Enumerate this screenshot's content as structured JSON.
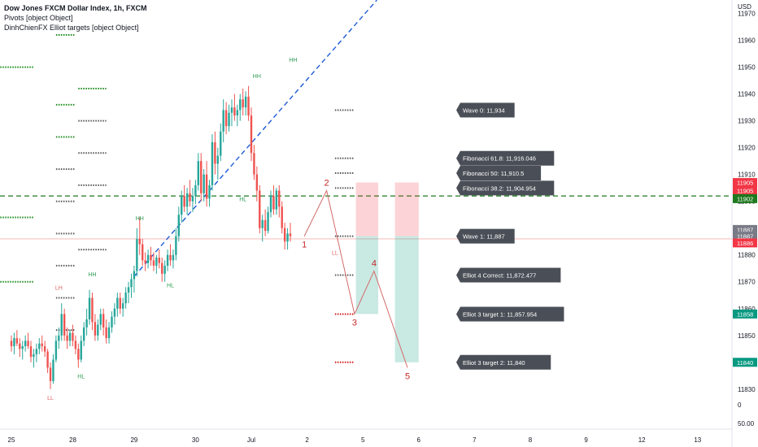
{
  "legend": {
    "title": "Dow Jones FXCM Dollar Index, 1h, FXCM",
    "line2": "Pivots [object Object]",
    "line3": "DinhChienFX Elliot targets [object Object]"
  },
  "colors": {
    "up": "#26a69a",
    "down": "#ef5350",
    "pivotGreen": "#1b8a1b",
    "pivotGray": "#555555",
    "pivotRed": "#d01818",
    "trend": "#1e5bd6",
    "tagBg": "#4a4f57",
    "wave": "#c62828",
    "greenLine": "#1e7a1e"
  },
  "chart_data": {
    "type": "candlestick",
    "symbol": "Dow Jones FXCM Dollar Index",
    "interval": "1h",
    "source": "FXCM",
    "ylim": [
      11826,
      11972
    ],
    "price_axis_currency": "USD",
    "price_ticks": [
      11830,
      11840,
      11850,
      11860,
      11870,
      11880,
      11890,
      11900,
      11910,
      11920,
      11930,
      11940,
      11950,
      11960,
      11970
    ],
    "volume_ticks": [
      "0",
      "50.00"
    ],
    "time_ticks": [
      {
        "label": "25",
        "bar": 0
      },
      {
        "label": "28",
        "bar": 22
      },
      {
        "label": "29",
        "bar": 44
      },
      {
        "label": "30",
        "bar": 66
      },
      {
        "label": "Jul",
        "bar": 86
      },
      {
        "label": "2",
        "bar": 106
      },
      {
        "label": "5",
        "bar": 126
      },
      {
        "label": "6",
        "bar": 146
      },
      {
        "label": "7",
        "bar": 166
      },
      {
        "label": "8",
        "bar": 186
      },
      {
        "label": "9",
        "bar": 206
      },
      {
        "label": "12",
        "bar": 226
      },
      {
        "label": "13",
        "bar": 246
      }
    ],
    "candles": [
      [
        11848,
        11850,
        11844,
        11846
      ],
      [
        11846,
        11851,
        11843,
        11849
      ],
      [
        11849,
        11852,
        11846,
        11847
      ],
      [
        11847,
        11849,
        11842,
        11845
      ],
      [
        11845,
        11848,
        11841,
        11846
      ],
      [
        11846,
        11850,
        11844,
        11848
      ],
      [
        11848,
        11851,
        11845,
        11846
      ],
      [
        11846,
        11848,
        11840,
        11842
      ],
      [
        11842,
        11845,
        11838,
        11843
      ],
      [
        11843,
        11847,
        11840,
        11845
      ],
      [
        11845,
        11849,
        11843,
        11847
      ],
      [
        11847,
        11850,
        11844,
        11846
      ],
      [
        11846,
        11848,
        11842,
        11844
      ],
      [
        11844,
        11845,
        11836,
        11838
      ],
      [
        11838,
        11840,
        11830,
        11833
      ],
      [
        11833,
        11843,
        11832,
        11841
      ],
      [
        11841,
        11850,
        11840,
        11848
      ],
      [
        11848,
        11853,
        11845,
        11850
      ],
      [
        11850,
        11862,
        11848,
        11858
      ],
      [
        11858,
        11860,
        11848,
        11850
      ],
      [
        11850,
        11853,
        11845,
        11848
      ],
      [
        11848,
        11852,
        11846,
        11851
      ],
      [
        11851,
        11854,
        11846,
        11848
      ],
      [
        11848,
        11850,
        11843,
        11845
      ],
      [
        11845,
        11847,
        11838,
        11841
      ],
      [
        11841,
        11850,
        11840,
        11848
      ],
      [
        11848,
        11855,
        11846,
        11853
      ],
      [
        11853,
        11860,
        11850,
        11856
      ],
      [
        11856,
        11867,
        11854,
        11864
      ],
      [
        11864,
        11866,
        11852,
        11855
      ],
      [
        11855,
        11858,
        11848,
        11850
      ],
      [
        11850,
        11856,
        11848,
        11854
      ],
      [
        11854,
        11860,
        11852,
        11858
      ],
      [
        11858,
        11860,
        11850,
        11853
      ],
      [
        11853,
        11856,
        11847,
        11849
      ],
      [
        11849,
        11855,
        11847,
        11853
      ],
      [
        11853,
        11859,
        11851,
        11857
      ],
      [
        11857,
        11862,
        11854,
        11860
      ],
      [
        11860,
        11866,
        11857,
        11864
      ],
      [
        11864,
        11866,
        11858,
        11860
      ],
      [
        11860,
        11864,
        11857,
        11862
      ],
      [
        11862,
        11868,
        11860,
        11866
      ],
      [
        11866,
        11870,
        11862,
        11868
      ],
      [
        11868,
        11873,
        11864,
        11871
      ],
      [
        11871,
        11876,
        11866,
        11874
      ],
      [
        11874,
        11890,
        11872,
        11886
      ],
      [
        11886,
        11894,
        11880,
        11884
      ],
      [
        11884,
        11886,
        11876,
        11878
      ],
      [
        11878,
        11881,
        11874,
        11877
      ],
      [
        11877,
        11882,
        11875,
        11880
      ],
      [
        11880,
        11883,
        11876,
        11878
      ],
      [
        11878,
        11881,
        11874,
        11876
      ],
      [
        11876,
        11880,
        11873,
        11879
      ],
      [
        11879,
        11882,
        11875,
        11877
      ],
      [
        11877,
        11879,
        11870,
        11873
      ],
      [
        11873,
        11878,
        11870,
        11876
      ],
      [
        11876,
        11882,
        11874,
        11880
      ],
      [
        11880,
        11884,
        11876,
        11878
      ],
      [
        11878,
        11882,
        11875,
        11880
      ],
      [
        11880,
        11890,
        11878,
        11887
      ],
      [
        11887,
        11898,
        11885,
        11895
      ],
      [
        11895,
        11904,
        11892,
        11902
      ],
      [
        11902,
        11906,
        11896,
        11898
      ],
      [
        11898,
        11905,
        11895,
        11903
      ],
      [
        11903,
        11908,
        11898,
        11900
      ],
      [
        11900,
        11905,
        11896,
        11902
      ],
      [
        11902,
        11908,
        11899,
        11906
      ],
      [
        11906,
        11918,
        11904,
        11915
      ],
      [
        11915,
        11918,
        11900,
        11903
      ],
      [
        11903,
        11912,
        11900,
        11910
      ],
      [
        11910,
        11915,
        11898,
        11901
      ],
      [
        11901,
        11908,
        11898,
        11906
      ],
      [
        11906,
        11925,
        11904,
        11922
      ],
      [
        11922,
        11926,
        11910,
        11914
      ],
      [
        11914,
        11920,
        11908,
        11917
      ],
      [
        11917,
        11929,
        11915,
        11926
      ],
      [
        11926,
        11938,
        11922,
        11934
      ],
      [
        11934,
        11937,
        11925,
        11928
      ],
      [
        11928,
        11936,
        11926,
        11933
      ],
      [
        11933,
        11938,
        11928,
        11935
      ],
      [
        11935,
        11940,
        11930,
        11932
      ],
      [
        11932,
        11936,
        11928,
        11934
      ],
      [
        11934,
        11940,
        11930,
        11938
      ],
      [
        11938,
        11942,
        11932,
        11935
      ],
      [
        11935,
        11941,
        11932,
        11939
      ],
      [
        11939,
        11943,
        11930,
        11932
      ],
      [
        11932,
        11935,
        11915,
        11918
      ],
      [
        11918,
        11921,
        11908,
        11910
      ],
      [
        11910,
        11913,
        11900,
        11904
      ],
      [
        11904,
        11906,
        11888,
        11890
      ],
      [
        11890,
        11895,
        11885,
        11893
      ],
      [
        11893,
        11897,
        11887,
        11889
      ],
      [
        11889,
        11898,
        11888,
        11896
      ],
      [
        11896,
        11904,
        11894,
        11902
      ],
      [
        11902,
        11906,
        11895,
        11897
      ],
      [
        11897,
        11905,
        11895,
        11904
      ],
      [
        11904,
        11906,
        11894,
        11898
      ],
      [
        11898,
        11900,
        11888,
        11890
      ],
      [
        11890,
        11892,
        11882,
        11885
      ],
      [
        11885,
        11890,
        11882,
        11888
      ],
      [
        11888,
        11892,
        11885,
        11887
      ]
    ],
    "trendline": [
      {
        "bar": 44,
        "price": 11872
      },
      {
        "bar": 131,
        "price": 11975
      }
    ],
    "pivot_lines": [
      {
        "price": 11962,
        "from": 16,
        "to": 23,
        "color": "green"
      },
      {
        "price": 11950,
        "from": -4,
        "to": 8,
        "color": "green"
      },
      {
        "price": 11942,
        "from": 24,
        "to": 34,
        "color": "green"
      },
      {
        "price": 11936,
        "from": 16,
        "to": 23,
        "color": "green"
      },
      {
        "price": 11930,
        "from": 24,
        "to": 34,
        "color": "gray"
      },
      {
        "price": 11924,
        "from": 16,
        "to": 23,
        "color": "green"
      },
      {
        "price": 11918,
        "from": 24,
        "to": 34,
        "color": "gray"
      },
      {
        "price": 11912,
        "from": 16,
        "to": 23,
        "color": "gray"
      },
      {
        "price": 11906,
        "from": 24,
        "to": 34,
        "color": "gray"
      },
      {
        "price": 11900,
        "from": 16,
        "to": 23,
        "color": "gray"
      },
      {
        "price": 11894,
        "from": -4,
        "to": 8,
        "color": "green"
      },
      {
        "price": 11888,
        "from": 16,
        "to": 23,
        "color": "gray"
      },
      {
        "price": 11882,
        "from": 24,
        "to": 34,
        "color": "gray"
      },
      {
        "price": 11876,
        "from": 16,
        "to": 23,
        "color": "gray"
      },
      {
        "price": 11870,
        "from": -4,
        "to": 8,
        "color": "green"
      },
      {
        "price": 11864,
        "from": 16,
        "to": 23,
        "color": "gray"
      },
      {
        "price": 11852,
        "from": 16,
        "to": 23,
        "color": "gray"
      }
    ],
    "pivot_labels": [
      {
        "text": "HH",
        "bar": 101,
        "price": 11952,
        "color": "green"
      },
      {
        "text": "HH",
        "bar": 88,
        "price": 11946,
        "color": "green"
      },
      {
        "text": "HH",
        "bar": 46,
        "price": 11893,
        "color": "green"
      },
      {
        "text": "HH",
        "bar": 29,
        "price": 11872,
        "color": "green"
      },
      {
        "text": "LH",
        "bar": 17,
        "price": 11867,
        "color": "red"
      },
      {
        "text": "HL",
        "bar": 25,
        "price": 11834,
        "color": "green"
      },
      {
        "text": "LL",
        "bar": 14,
        "price": 11826,
        "color": "red"
      },
      {
        "text": "HL",
        "bar": 57,
        "price": 11868,
        "color": "green"
      },
      {
        "text": "HL",
        "bar": 83,
        "price": 11900,
        "color": "green"
      },
      {
        "text": "LL",
        "bar": 116,
        "price": 11880,
        "color": "red"
      }
    ],
    "green_dashed_line": 11902,
    "elliott_levels": [
      {
        "label": "Wave 0: 11,934",
        "price": 11934
      },
      {
        "label": "Fibonacci 61.8: 11,916.046",
        "price": 11916.046
      },
      {
        "label": "Fibonacci 50: 11,910.5",
        "price": 11910.5
      },
      {
        "label": "Fibonacci 38.2: 11,904.954",
        "price": 11904.954
      },
      {
        "label": "Wave 1: 11,887",
        "price": 11887
      },
      {
        "label": "Elliot 4 Correct: 11,872.477",
        "price": 11872.477
      },
      {
        "label": "Elliot 3 target 1: 11,857.954",
        "price": 11857.954
      },
      {
        "label": "Elliot 3 target 2: 11,840",
        "price": 11840
      }
    ],
    "elliott_waves": [
      {
        "label": "1",
        "bar": 105,
        "price": 11887
      },
      {
        "label": "2",
        "bar": 113,
        "price": 11904
      },
      {
        "label": "3",
        "bar": 123,
        "price": 11858
      },
      {
        "label": "4",
        "bar": 130,
        "price": 11874
      },
      {
        "label": "5",
        "bar": 142,
        "price": 11838
      }
    ],
    "price_tags": [
      {
        "text": "11905",
        "price": 11907,
        "bg": "#f23645"
      },
      {
        "text": "11905",
        "price": 11904,
        "bg": "#f23645"
      },
      {
        "text": "11902",
        "price": 11901,
        "bg": "#1e7a1e"
      },
      {
        "text": "11887",
        "price": 11889.5,
        "bg": "#787b86"
      },
      {
        "text": "11887",
        "price": 11887,
        "bg": "#787b86"
      },
      {
        "text": "11886",
        "price": 11884.5,
        "bg": "#f23645"
      },
      {
        "text": "11858",
        "price": 11858,
        "bg": "#089981"
      },
      {
        "text": "11840",
        "price": 11840,
        "bg": "#089981"
      }
    ]
  }
}
